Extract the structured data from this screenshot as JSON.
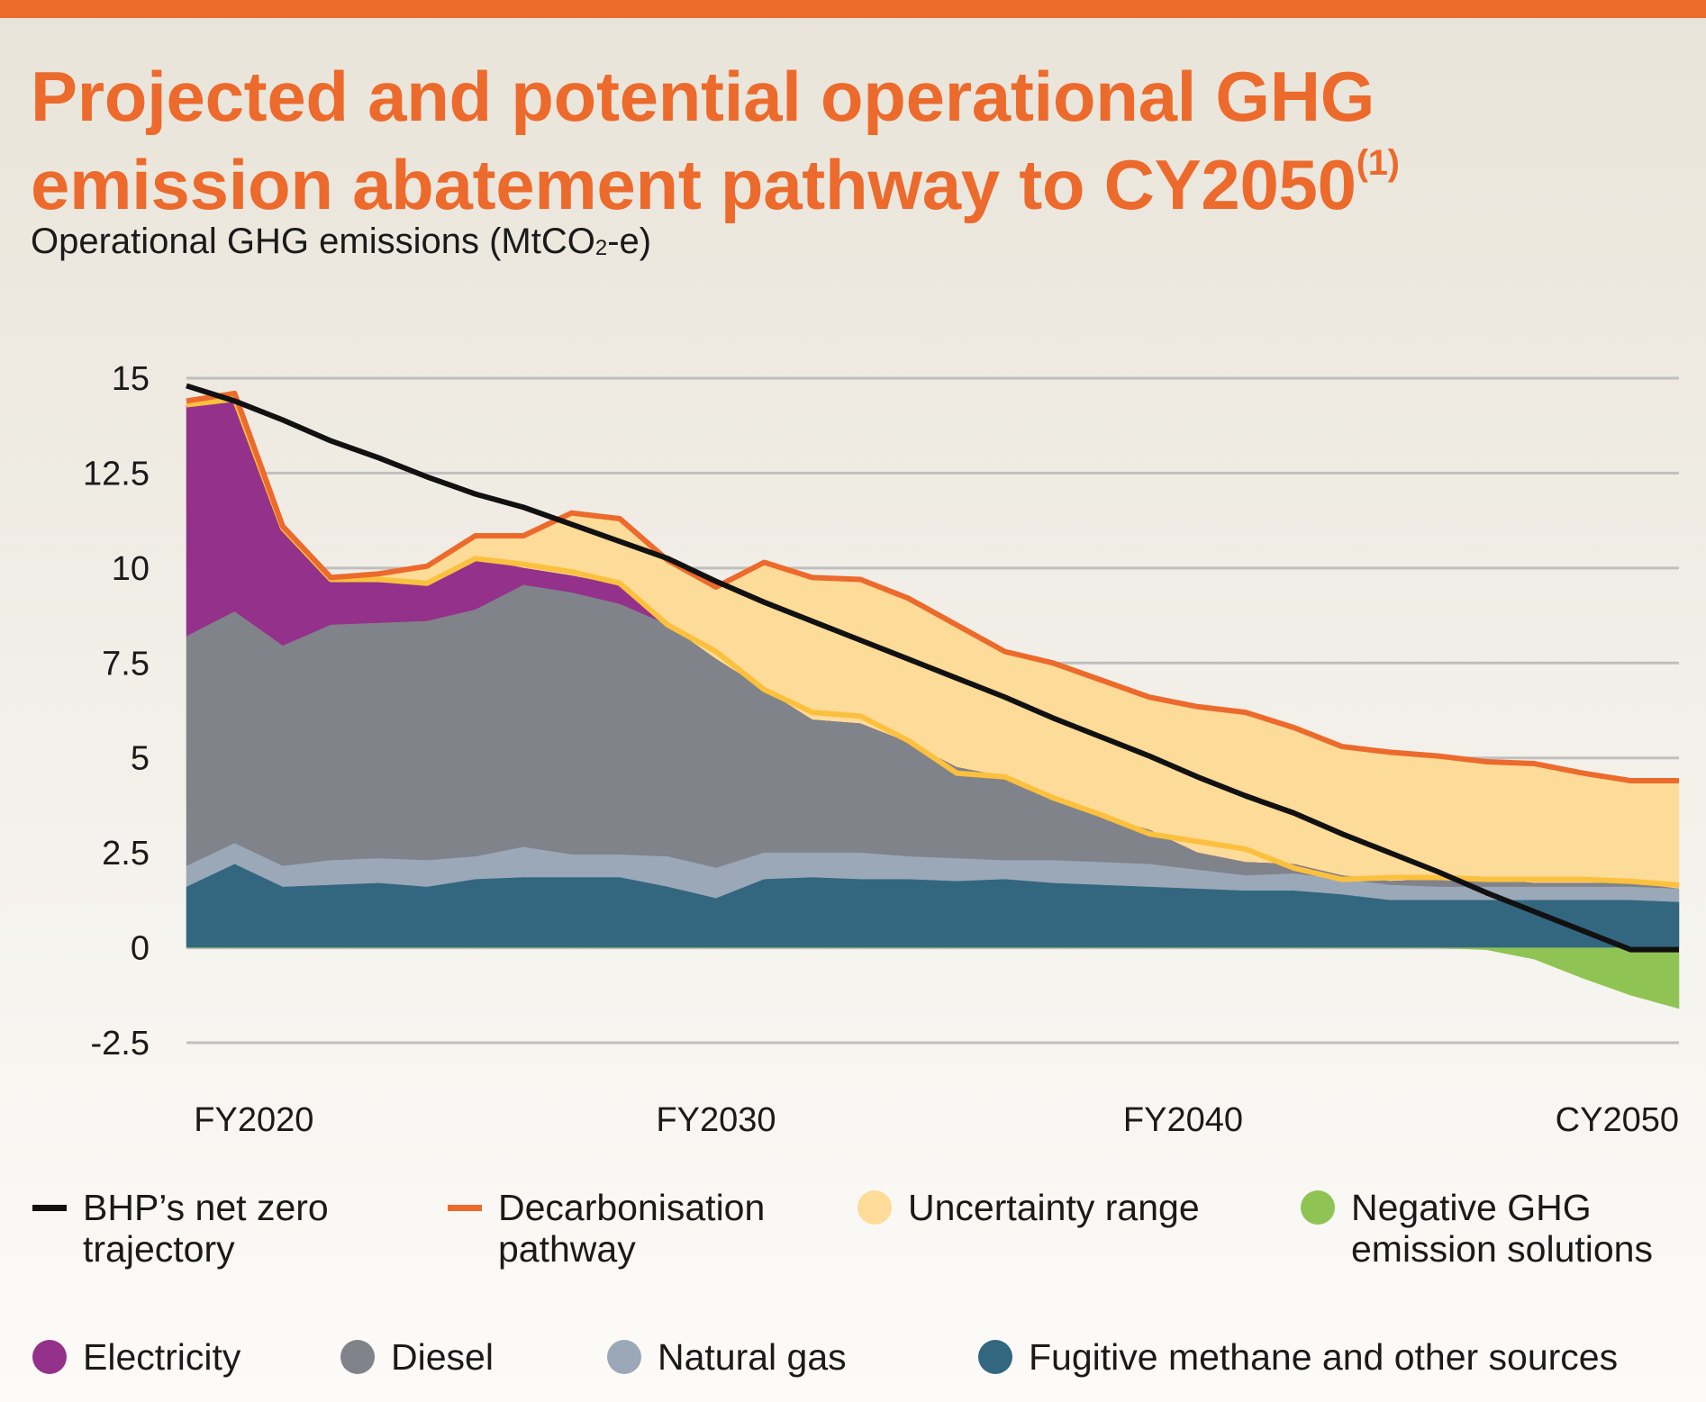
{
  "colors": {
    "accent": "#ec6a2c",
    "net_zero": "#111111",
    "decarbonisation": "#ec6a2c",
    "uncertainty_fill": "#fddb98",
    "uncertainty_edge": "#fbc13e",
    "negative": "#8fc454",
    "electricity": "#94318b",
    "diesel": "#808389",
    "natural_gas": "#9aa8b8",
    "fugitive": "#33677f",
    "grid": "#bfbfbf"
  },
  "header": {
    "title_line1": "Projected and potential operational GHG",
    "title_line2": "emission abatement pathway to CY2050",
    "title_footnote": "(1)",
    "subtitle_prefix": "Operational GHG emissions (MtCO",
    "subtitle_sub": "2",
    "subtitle_suffix": "-e)"
  },
  "legend": {
    "net_zero_line1": "BHP’s net zero",
    "net_zero_line2": "trajectory",
    "decarb_line1": "Decarbonisation",
    "decarb_line2": "pathway",
    "uncertainty": "Uncertainty range",
    "negative_line1": "Negative GHG",
    "negative_line2": "emission solutions",
    "electricity": "Electricity",
    "diesel": "Diesel",
    "natural_gas": "Natural gas",
    "fugitive": "Fugitive methane and other sources"
  },
  "chart_data": {
    "type": "area",
    "title": "Projected and potential operational GHG emission abatement pathway to CY2050",
    "ylabel": "Operational GHG emissions (MtCO2-e)",
    "ylim": [
      -2.5,
      15
    ],
    "yticks": [
      15,
      12.5,
      10,
      7.5,
      5,
      2.5,
      0,
      -2.5
    ],
    "ytick_labels": [
      "15",
      "12.5",
      "10",
      "7.5",
      "5",
      "2.5",
      "0",
      "-2.5"
    ],
    "x": [
      2019,
      2020,
      2021,
      2022,
      2023,
      2024,
      2025,
      2026,
      2027,
      2028,
      2029,
      2030,
      2031,
      2032,
      2033,
      2034,
      2035,
      2036,
      2037,
      2038,
      2039,
      2040,
      2041,
      2042,
      2043,
      2044,
      2045,
      2046,
      2047,
      2048,
      2049,
      2050
    ],
    "xlim": [
      2019,
      2050
    ],
    "xticks": [
      {
        "x": 2020.4,
        "label": "FY2020"
      },
      {
        "x": 2030,
        "label": "FY2030"
      },
      {
        "x": 2039.7,
        "label": "FY2040"
      },
      {
        "x": 2049.6,
        "label": "CY2050"
      }
    ],
    "grid": true,
    "series": [
      {
        "name": "Fugitive methane and other sources",
        "kind": "stacked-area",
        "values": [
          1.6,
          2.2,
          1.6,
          1.65,
          1.7,
          1.6,
          1.8,
          1.85,
          1.85,
          1.85,
          1.6,
          1.3,
          1.8,
          1.85,
          1.8,
          1.8,
          1.75,
          1.8,
          1.7,
          1.65,
          1.6,
          1.55,
          1.5,
          1.5,
          1.4,
          1.25,
          1.25,
          1.25,
          1.25,
          1.25,
          1.25,
          1.2
        ]
      },
      {
        "name": "Natural gas",
        "kind": "stacked-area",
        "values": [
          0.55,
          0.55,
          0.55,
          0.65,
          0.65,
          0.7,
          0.6,
          0.8,
          0.6,
          0.6,
          0.8,
          0.8,
          0.7,
          0.65,
          0.7,
          0.6,
          0.6,
          0.5,
          0.6,
          0.6,
          0.6,
          0.5,
          0.4,
          0.45,
          0.4,
          0.4,
          0.35,
          0.35,
          0.35,
          0.35,
          0.35,
          0.35
        ]
      },
      {
        "name": "Diesel",
        "kind": "stacked-area",
        "values": [
          6.05,
          6.1,
          5.8,
          6.2,
          6.2,
          6.3,
          6.5,
          6.9,
          6.9,
          6.6,
          6.1,
          5.5,
          4.3,
          3.5,
          3.4,
          3.0,
          2.4,
          2.2,
          1.6,
          1.2,
          0.9,
          0.45,
          0.35,
          0.25,
          0.1,
          0.1,
          0.2,
          0.2,
          0.1,
          0.1,
          0.1,
          0
        ]
      },
      {
        "name": "Electricity",
        "kind": "stacked-area",
        "values": [
          6.1,
          5.6,
          3.1,
          1.2,
          1.15,
          1.0,
          1.35,
          0.45,
          0.45,
          0.5,
          0.0,
          0,
          0,
          0,
          0,
          0,
          0,
          0,
          0,
          0,
          0,
          0,
          0,
          0,
          0,
          0,
          0,
          0,
          0,
          0,
          0,
          0
        ]
      },
      {
        "name": "Uncertainty range (lower bound)",
        "kind": "band-lower",
        "values": [
          14.3,
          14.45,
          11.05,
          9.7,
          9.7,
          9.6,
          10.25,
          10.1,
          9.9,
          9.6,
          8.5,
          7.8,
          6.8,
          6.2,
          6.1,
          5.45,
          4.6,
          4.5,
          3.95,
          3.5,
          3.0,
          2.8,
          2.6,
          2.1,
          1.8,
          1.85,
          1.85,
          1.8,
          1.8,
          1.8,
          1.75,
          1.65
        ]
      },
      {
        "name": "Decarbonisation pathway",
        "kind": "line",
        "values": [
          14.4,
          14.6,
          11.1,
          9.75,
          9.85,
          10.05,
          10.85,
          10.85,
          11.45,
          11.3,
          10.2,
          9.5,
          10.15,
          9.75,
          9.7,
          9.2,
          8.5,
          7.8,
          7.5,
          7.05,
          6.6,
          6.35,
          6.2,
          5.8,
          5.3,
          5.15,
          5.05,
          4.9,
          4.85,
          4.6,
          4.4,
          4.4
        ]
      },
      {
        "name": "BHP’s net zero trajectory",
        "kind": "line",
        "values": [
          14.8,
          14.4,
          13.9,
          13.35,
          12.9,
          12.4,
          11.95,
          11.6,
          11.15,
          10.7,
          10.25,
          9.65,
          9.1,
          8.6,
          8.1,
          7.6,
          7.1,
          6.6,
          6.05,
          5.55,
          5.05,
          4.5,
          4.0,
          3.55,
          3.0,
          2.5,
          2.0,
          1.45,
          0.95,
          0.45,
          -0.05,
          -0.05
        ]
      },
      {
        "name": "Negative GHG emission solutions",
        "kind": "negative-area",
        "values": [
          0,
          0,
          0,
          0,
          0,
          0,
          0,
          0,
          0,
          0,
          0,
          0,
          0,
          0,
          0,
          0,
          0,
          0,
          0,
          0,
          0,
          0,
          0,
          0,
          0,
          0,
          0,
          -0.05,
          -0.3,
          -0.8,
          -1.25,
          -1.6
        ]
      }
    ]
  }
}
